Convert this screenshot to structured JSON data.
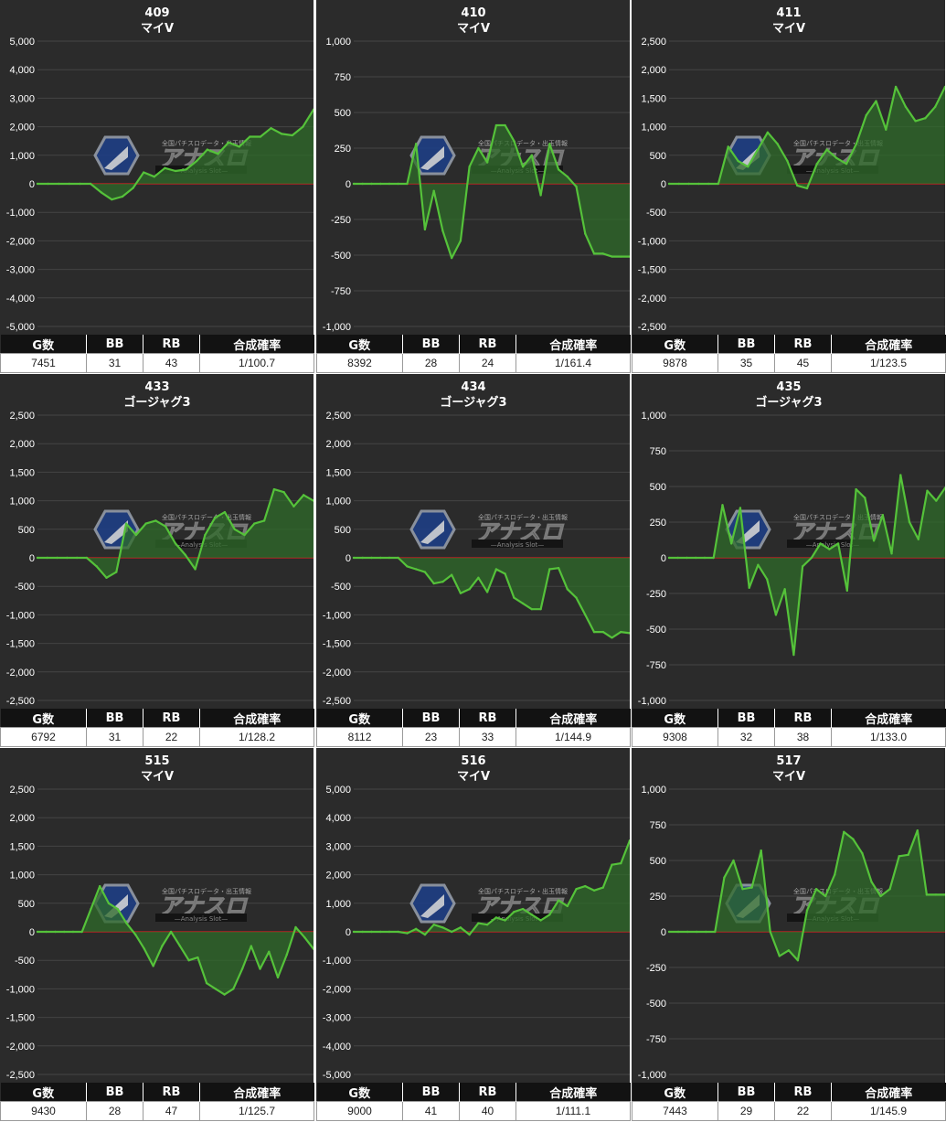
{
  "colors": {
    "background": "#2b2b2b",
    "grid": "#444444",
    "zero_line": "#cc2222",
    "line": "#55c23a",
    "fill": "#2f6b2a",
    "text": "#ffffff"
  },
  "watermark": {
    "top_text": "全国パチスロデータ・出玉情報",
    "main_text": "アナスロ",
    "sub_text": "—Analysis Slot—"
  },
  "table_headers": [
    "G数",
    "BB",
    "RB",
    "合成確率"
  ],
  "panels": [
    {
      "number": "409",
      "machine": "マイV",
      "stats": {
        "games": "7451",
        "bb": "31",
        "rb": "43",
        "prob": "1/100.7"
      }
    },
    {
      "number": "410",
      "machine": "マイV",
      "stats": {
        "games": "8392",
        "bb": "28",
        "rb": "24",
        "prob": "1/161.4"
      }
    },
    {
      "number": "411",
      "machine": "マイV",
      "stats": {
        "games": "9878",
        "bb": "35",
        "rb": "45",
        "prob": "1/123.5"
      }
    },
    {
      "number": "433",
      "machine": "ゴージャグ3",
      "stats": {
        "games": "6792",
        "bb": "31",
        "rb": "22",
        "prob": "1/128.2"
      }
    },
    {
      "number": "434",
      "machine": "ゴージャグ3",
      "stats": {
        "games": "8112",
        "bb": "23",
        "rb": "33",
        "prob": "1/144.9"
      }
    },
    {
      "number": "435",
      "machine": "ゴージャグ3",
      "stats": {
        "games": "9308",
        "bb": "32",
        "rb": "38",
        "prob": "1/133.0"
      }
    },
    {
      "number": "515",
      "machine": "マイV",
      "stats": {
        "games": "9430",
        "bb": "28",
        "rb": "47",
        "prob": "1/125.7"
      }
    },
    {
      "number": "516",
      "machine": "マイV",
      "stats": {
        "games": "9000",
        "bb": "41",
        "rb": "40",
        "prob": "1/111.1"
      }
    },
    {
      "number": "517",
      "machine": "マイV",
      "stats": {
        "games": "7443",
        "bb": "29",
        "rb": "22",
        "prob": "1/145.9"
      }
    }
  ],
  "chart_data": [
    {
      "type": "area",
      "title": "409",
      "subtitle": "マイV",
      "ylim": [
        -5000,
        5000
      ],
      "yticks": [
        5000,
        4000,
        3000,
        2000,
        1000,
        0,
        -1000,
        -2000,
        -3000,
        -4000,
        -5000
      ],
      "tick_labels": [
        "5,000",
        "4,000",
        "3,000",
        "2,000",
        "1,000",
        "0",
        "-1,000",
        "-2,000",
        "-3,000",
        "-4,000",
        "-5,000"
      ],
      "values": [
        0,
        0,
        0,
        0,
        0,
        0,
        -300,
        -550,
        -450,
        -150,
        400,
        250,
        550,
        450,
        500,
        800,
        1200,
        1050,
        1450,
        1300,
        1650,
        1650,
        1950,
        1750,
        1700,
        2000,
        2600
      ]
    },
    {
      "type": "area",
      "title": "410",
      "subtitle": "マイV",
      "ylim": [
        -1000,
        1000
      ],
      "yticks": [
        1000,
        750,
        500,
        250,
        0,
        -250,
        -500,
        -750,
        -1000
      ],
      "tick_labels": [
        "1,000",
        "750",
        "500",
        "250",
        "0",
        "-250",
        "-500",
        "-750",
        "-1,000"
      ],
      "values": [
        0,
        0,
        0,
        0,
        0,
        0,
        0,
        280,
        -320,
        -50,
        -330,
        -520,
        -400,
        120,
        250,
        150,
        410,
        410,
        300,
        120,
        200,
        -80,
        280,
        100,
        50,
        -20,
        -350,
        -490,
        -490,
        -510,
        -510,
        -510
      ]
    },
    {
      "type": "area",
      "title": "411",
      "subtitle": "マイV",
      "ylim": [
        -2500,
        2500
      ],
      "yticks": [
        2500,
        2000,
        1500,
        1000,
        500,
        0,
        -500,
        -1000,
        -1500,
        -2000,
        -2500
      ],
      "tick_labels": [
        "2,500",
        "2,000",
        "1,500",
        "1,000",
        "500",
        "0",
        "-500",
        "-1,000",
        "-1,500",
        "-2,000",
        "-2,500"
      ],
      "values": [
        0,
        0,
        0,
        0,
        0,
        0,
        650,
        400,
        300,
        600,
        900,
        700,
        400,
        -30,
        -80,
        350,
        600,
        450,
        350,
        700,
        1200,
        1450,
        950,
        1700,
        1350,
        1100,
        1150,
        1350,
        1700
      ]
    },
    {
      "type": "area",
      "title": "433",
      "subtitle": "ゴージャグ3",
      "ylim": [
        -2500,
        2500
      ],
      "yticks": [
        2500,
        2000,
        1500,
        1000,
        500,
        0,
        -500,
        -1000,
        -1500,
        -2000,
        -2500
      ],
      "tick_labels": [
        "2,500",
        "2,000",
        "1,500",
        "1,000",
        "500",
        "0",
        "-500",
        "-1,000",
        "-1,500",
        "-2,000",
        "-2,500"
      ],
      "values": [
        0,
        0,
        0,
        0,
        0,
        0,
        -150,
        -350,
        -250,
        600,
        400,
        600,
        650,
        550,
        250,
        50,
        -200,
        400,
        700,
        800,
        500,
        400,
        600,
        650,
        1200,
        1150,
        900,
        1100,
        1000
      ]
    },
    {
      "type": "area",
      "title": "434",
      "subtitle": "ゴージャグ3",
      "ylim": [
        -2500,
        2500
      ],
      "yticks": [
        2500,
        2000,
        1500,
        1000,
        500,
        0,
        -500,
        -1000,
        -1500,
        -2000,
        -2500
      ],
      "tick_labels": [
        "2,500",
        "2,000",
        "1,500",
        "1,000",
        "500",
        "0",
        "-500",
        "-1,000",
        "-1,500",
        "-2,000",
        "-2,500"
      ],
      "values": [
        0,
        0,
        0,
        0,
        0,
        0,
        -150,
        -200,
        -250,
        -450,
        -420,
        -300,
        -620,
        -550,
        -350,
        -600,
        -200,
        -280,
        -700,
        -800,
        -900,
        -900,
        -200,
        -180,
        -550,
        -700,
        -1000,
        -1300,
        -1300,
        -1400,
        -1300,
        -1320
      ]
    },
    {
      "type": "area",
      "title": "435",
      "subtitle": "ゴージャグ3",
      "ylim": [
        -1000,
        1000
      ],
      "yticks": [
        1000,
        750,
        500,
        250,
        0,
        -250,
        -500,
        -750,
        -1000
      ],
      "tick_labels": [
        "1,000",
        "750",
        "500",
        "250",
        "0",
        "-250",
        "-500",
        "-750",
        "-1,000"
      ],
      "values": [
        0,
        0,
        0,
        0,
        0,
        0,
        370,
        100,
        350,
        -210,
        -50,
        -150,
        -400,
        -220,
        -680,
        -60,
        0,
        100,
        60,
        100,
        -230,
        480,
        420,
        120,
        300,
        30,
        580,
        250,
        130,
        470,
        400,
        490
      ]
    },
    {
      "type": "area",
      "title": "515",
      "subtitle": "マイV",
      "ylim": [
        -2500,
        2500
      ],
      "yticks": [
        2500,
        2000,
        1500,
        1000,
        500,
        0,
        -500,
        -1000,
        -1500,
        -2000,
        -2500
      ],
      "tick_labels": [
        "2,500",
        "2,000",
        "1,500",
        "1,000",
        "500",
        "0",
        "-500",
        "-1,000",
        "-1,500",
        "-2,000",
        "-2,500"
      ],
      "values": [
        0,
        0,
        0,
        0,
        0,
        0,
        400,
        800,
        500,
        400,
        150,
        -50,
        -300,
        -600,
        -250,
        0,
        -250,
        -500,
        -450,
        -900,
        -1000,
        -1100,
        -1000,
        -650,
        -250,
        -650,
        -350,
        -800,
        -400,
        80,
        -100,
        -300
      ]
    },
    {
      "type": "area",
      "title": "516",
      "subtitle": "マイV",
      "ylim": [
        -5000,
        5000
      ],
      "yticks": [
        5000,
        4000,
        3000,
        2000,
        1000,
        0,
        -1000,
        -2000,
        -3000,
        -4000,
        -5000
      ],
      "tick_labels": [
        "5,000",
        "4,000",
        "3,000",
        "2,000",
        "1,000",
        "0",
        "-1,000",
        "-2,000",
        "-3,000",
        "-4,000",
        "-5,000"
      ],
      "values": [
        0,
        0,
        0,
        0,
        0,
        0,
        -50,
        100,
        -100,
        250,
        150,
        0,
        150,
        -100,
        300,
        250,
        500,
        400,
        700,
        800,
        600,
        400,
        600,
        1100,
        900,
        1500,
        1600,
        1450,
        1550,
        2350,
        2400,
        3200
      ]
    },
    {
      "type": "area",
      "title": "517",
      "subtitle": "マイV",
      "ylim": [
        -1000,
        1000
      ],
      "yticks": [
        1000,
        750,
        500,
        250,
        0,
        -250,
        -500,
        -750,
        -1000
      ],
      "tick_labels": [
        "1,000",
        "750",
        "500",
        "250",
        "0",
        "-250",
        "-500",
        "-750",
        "-1,000"
      ],
      "values": [
        0,
        0,
        0,
        0,
        0,
        0,
        380,
        500,
        300,
        310,
        570,
        0,
        -170,
        -130,
        -200,
        150,
        300,
        250,
        400,
        700,
        650,
        550,
        350,
        250,
        300,
        530,
        540,
        710,
        260,
        260,
        260
      ]
    }
  ]
}
